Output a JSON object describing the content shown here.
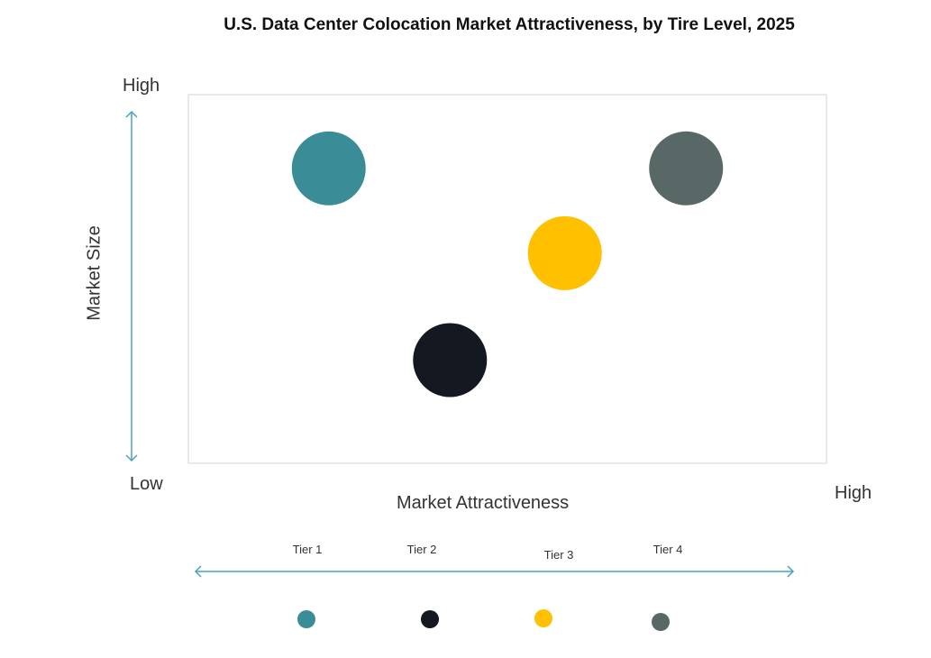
{
  "chart_data": {
    "type": "scatter",
    "title": "U.S. Data Center Colocation Market Attractiveness,  by Tire Level, 2025",
    "xlabel": "Market Attractiveness",
    "ylabel": "Market Size",
    "x_low_label": "Low",
    "x_high_label": "High",
    "y_high_label": "High",
    "xlim": [
      0,
      100
    ],
    "ylim": [
      0,
      100
    ],
    "grid": false,
    "legend_placement": "bottom",
    "series": [
      {
        "name": "Tier 1",
        "x": 22,
        "y": 80,
        "color": "#3a8d96"
      },
      {
        "name": "Tier 2",
        "x": 41,
        "y": 28,
        "color": "#131821"
      },
      {
        "name": "Tier 3",
        "x": 59,
        "y": 57,
        "color": "#ffc000"
      },
      {
        "name": "Tier 4",
        "x": 78,
        "y": 80,
        "color": "#586866"
      }
    ]
  }
}
